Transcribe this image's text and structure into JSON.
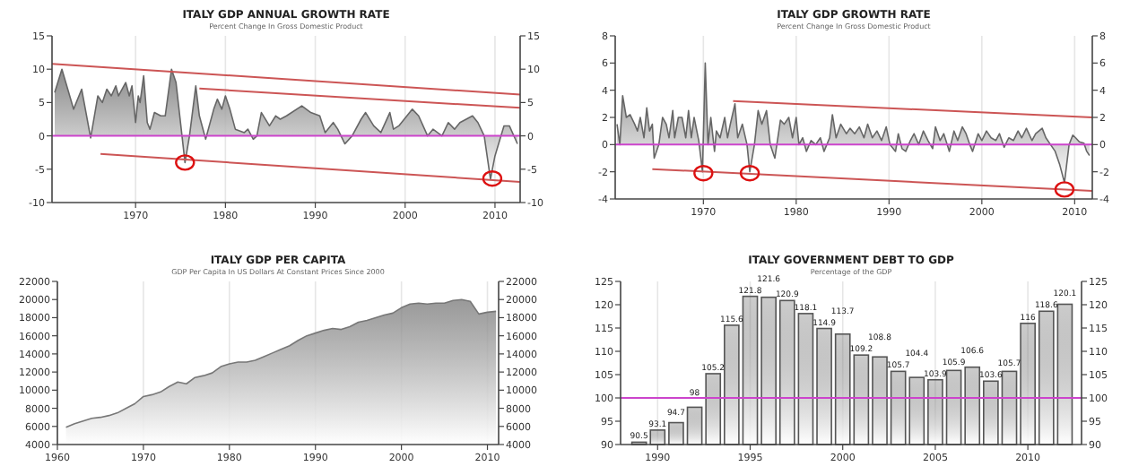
{
  "chart_data": [
    {
      "type": "area",
      "title": "ITALY GDP ANNUAL GROWTH RATE",
      "subtitle": "Percent Change In Gross Domestic Product",
      "xlim": [
        1960.7,
        2012.8
      ],
      "xticks": [
        1970,
        1980,
        1990,
        2000,
        2010
      ],
      "ylim": [
        -10,
        15
      ],
      "yticks": [
        -10,
        -5,
        0,
        5,
        10,
        15
      ],
      "y2lim": [
        -10,
        15
      ],
      "y2ticks": [
        -10,
        -5,
        0,
        5,
        10,
        15
      ],
      "grid": "x",
      "ref_lines": [
        {
          "axis": "y",
          "value": 0,
          "color": "#cc44cc"
        }
      ],
      "series": [
        {
          "type": "area",
          "color": "#666666",
          "x": [
            1961.0,
            1961.8,
            1963.1,
            1964.0,
            1965.0,
            1965.8,
            1966.3,
            1966.8,
            1967.3,
            1967.8,
            1968.1,
            1968.9,
            1969.3,
            1969.6,
            1970.0,
            1970.3,
            1970.5,
            1970.9,
            1971.3,
            1971.6,
            1972.1,
            1972.8,
            1973.3,
            1974.0,
            1974.5,
            1975.5,
            1976.0,
            1976.7,
            1977.1,
            1977.8,
            1978.7,
            1979.1,
            1979.6,
            1980.0,
            1980.5,
            1981.1,
            1982.1,
            1982.5,
            1983.1,
            1983.5,
            1984.0,
            1984.9,
            1985.6,
            1986.1,
            1986.8,
            1988.5,
            1989.5,
            1990.5,
            1991.1,
            1992.0,
            1992.5,
            1993.3,
            1994.1,
            1995.1,
            1995.6,
            1996.5,
            1997.3,
            1998.3,
            1998.7,
            1999.3,
            2000.8,
            2001.5,
            2002.5,
            2003.1,
            2004.1,
            2004.8,
            2005.5,
            2006.1,
            2007.5,
            2008.1,
            2008.8,
            2009.5,
            2010.0,
            2011.0,
            2011.6,
            2012.5
          ],
          "values": [
            6.5,
            10,
            4,
            7,
            -0.3,
            6,
            5,
            7,
            6,
            7.5,
            6,
            8,
            6,
            7.5,
            2,
            6,
            5,
            9,
            2,
            1,
            3.5,
            3,
            3,
            10,
            8,
            -4,
            0,
            7.5,
            3,
            -0.5,
            4,
            5.5,
            4,
            6,
            4,
            1,
            0.5,
            1,
            -0.5,
            0,
            3.5,
            1.5,
            3,
            2.5,
            3,
            4.5,
            3.5,
            3,
            0.5,
            2,
            1,
            -1.2,
            0,
            2.5,
            3.5,
            1.5,
            0.5,
            3.5,
            1,
            1.5,
            4,
            3,
            0,
            1,
            0,
            2,
            1,
            2,
            3,
            2,
            0,
            -6.5,
            -3,
            1.5,
            1.5,
            -1.2
          ]
        },
        {
          "type": "line",
          "color": "#cc5555",
          "x": [
            1960.7,
            2012.8
          ],
          "values": [
            10.8,
            6.2
          ]
        },
        {
          "type": "line",
          "color": "#cc5555",
          "x": [
            1977.1,
            2012.8
          ],
          "values": [
            7.1,
            4.2
          ]
        },
        {
          "type": "line",
          "color": "#cc5555",
          "x": [
            1966.1,
            2012.8
          ],
          "values": [
            -2.7,
            -6.9
          ]
        },
        {
          "type": "scatter",
          "marker": "circle",
          "color": "#dd1111",
          "x": [
            1975.5,
            2009.7
          ],
          "values": [
            -4,
            -6.4
          ]
        }
      ]
    },
    {
      "type": "area",
      "title": "ITALY GDP GROWTH RATE",
      "subtitle": "Percent Change In Gross Domestic Product",
      "xlim": [
        1960.5,
        2011.9
      ],
      "xticks": [
        1970,
        1980,
        1990,
        2000,
        2010
      ],
      "ylim": [
        -4,
        8
      ],
      "yticks": [
        -4,
        -2,
        0,
        2,
        4,
        6,
        8
      ],
      "y2lim": [
        -4,
        8
      ],
      "y2ticks": [
        -4,
        -2,
        0,
        2,
        4,
        6,
        8
      ],
      "grid": "x",
      "ref_lines": [
        {
          "axis": "y",
          "value": 0,
          "color": "#cc44cc"
        }
      ],
      "series": [
        {
          "type": "area",
          "color": "#666666",
          "x": [
            1960.7,
            1961.0,
            1961.3,
            1961.7,
            1962.1,
            1962.6,
            1962.9,
            1963.2,
            1963.6,
            1963.9,
            1964.2,
            1964.5,
            1964.7,
            1965.2,
            1965.6,
            1966.0,
            1966.3,
            1966.7,
            1966.9,
            1967.3,
            1967.7,
            1968.1,
            1968.4,
            1968.7,
            1969.0,
            1969.5,
            1969.9,
            1970.2,
            1970.5,
            1970.8,
            1971.2,
            1971.4,
            1971.8,
            1972.3,
            1972.6,
            1972.9,
            1973.4,
            1973.7,
            1974.2,
            1974.7,
            1975.0,
            1975.5,
            1975.9,
            1976.3,
            1976.8,
            1977.2,
            1977.7,
            1978.3,
            1978.7,
            1979.2,
            1979.6,
            1980.0,
            1980.3,
            1980.7,
            1981.1,
            1981.6,
            1982.1,
            1982.6,
            1983.0,
            1983.6,
            1983.9,
            1984.3,
            1984.8,
            1985.4,
            1985.8,
            1986.3,
            1986.8,
            1987.3,
            1987.7,
            1988.2,
            1988.7,
            1989.2,
            1989.7,
            1990.1,
            1990.7,
            1991.0,
            1991.4,
            1991.8,
            1992.3,
            1992.7,
            1993.2,
            1993.7,
            1994.2,
            1994.7,
            1995.0,
            1995.5,
            1995.9,
            1996.5,
            1997.0,
            1997.4,
            1997.9,
            1998.3,
            1998.7,
            1999.0,
            1999.6,
            2000.0,
            2000.5,
            2001.0,
            2001.5,
            2001.9,
            2002.4,
            2002.9,
            2003.4,
            2003.9,
            2004.3,
            2004.8,
            2005.4,
            2005.8,
            2006.5,
            2006.9,
            2007.4,
            2007.9,
            2008.4,
            2008.9,
            2009.4,
            2009.8,
            2010.1,
            2010.5,
            2011.0,
            2011.3,
            2011.6
          ],
          "values": [
            1.5,
            0,
            3.6,
            2,
            2.2,
            1.5,
            1,
            2,
            0.5,
            2.7,
            1,
            1.5,
            -1,
            0,
            2,
            1.5,
            0.5,
            2.5,
            0.5,
            2,
            2,
            0.5,
            2.5,
            0.5,
            2,
            0.3,
            -2,
            6,
            0,
            2,
            -0.5,
            1,
            0.5,
            2,
            0.5,
            1.5,
            3,
            0.5,
            1.5,
            0,
            -2,
            0,
            2.5,
            1.5,
            2.5,
            0,
            -1,
            1.8,
            1.5,
            2,
            0.5,
            2,
            0,
            0.5,
            -0.5,
            0.3,
            0,
            0.5,
            -0.5,
            0.5,
            2.2,
            0.5,
            1.5,
            0.8,
            1.2,
            0.8,
            1.3,
            0.5,
            1.5,
            0.5,
            1,
            0.3,
            1.3,
            0,
            -0.5,
            0.8,
            -0.3,
            -0.5,
            0.3,
            0.8,
            0,
            1,
            0.3,
            -0.3,
            1.3,
            0.3,
            0.8,
            -0.5,
            1,
            0.3,
            1.3,
            0.8,
            0,
            -0.5,
            0.8,
            0.3,
            1,
            0.5,
            0.3,
            0.8,
            -0.2,
            0.5,
            0.3,
            1,
            0.5,
            1.2,
            0.3,
            0.8,
            1.2,
            0.5,
            0,
            -0.5,
            -1.5,
            -2.8,
            0,
            0.7,
            0.5,
            0.2,
            0.1,
            -0.5,
            -0.8
          ]
        },
        {
          "type": "line",
          "color": "#cc5555",
          "x": [
            1973.2,
            2011.9
          ],
          "values": [
            3.2,
            2.0
          ]
        },
        {
          "type": "line",
          "color": "#cc5555",
          "x": [
            1964.5,
            2011.9
          ],
          "values": [
            -1.8,
            -3.4
          ]
        },
        {
          "type": "scatter",
          "marker": "circle",
          "color": "#dd1111",
          "x": [
            1970.0,
            1975.0,
            2008.9
          ],
          "values": [
            -2.1,
            -2.1,
            -3.3
          ]
        }
      ]
    },
    {
      "type": "area",
      "title": "ITALY GDP PER CAPITA",
      "subtitle": "GDP Per Capita In US Dollars At Constant Prices Since 2000",
      "xlim": [
        1960,
        2011.3
      ],
      "xticks": [
        1960,
        1970,
        1980,
        1990,
        2000,
        2010
      ],
      "ylim": [
        4000,
        22000
      ],
      "yticks": [
        4000,
        6000,
        8000,
        10000,
        12000,
        14000,
        16000,
        18000,
        20000,
        22000
      ],
      "y2lim": [
        4000,
        22000
      ],
      "y2ticks": [
        4000,
        6000,
        8000,
        10000,
        12000,
        14000,
        16000,
        18000,
        20000,
        22000
      ],
      "grid": "x",
      "series": [
        {
          "type": "area",
          "color": "#777777",
          "x": [
            1961,
            1962,
            1963,
            1964,
            1965,
            1966,
            1967,
            1968,
            1969,
            1970,
            1971,
            1972,
            1973,
            1974,
            1975,
            1976,
            1977,
            1978,
            1979,
            1980,
            1981,
            1982,
            1983,
            1984,
            1985,
            1986,
            1987,
            1988,
            1989,
            1990,
            1991,
            1992,
            1993,
            1994,
            1995,
            1996,
            1997,
            1998,
            1999,
            2000,
            2001,
            2002,
            2003,
            2004,
            2005,
            2006,
            2007,
            2008,
            2009,
            2010,
            2011
          ],
          "values": [
            5900,
            6300,
            6600,
            6900,
            7000,
            7200,
            7500,
            8000,
            8500,
            9300,
            9500,
            9800,
            10400,
            10900,
            10700,
            11400,
            11600,
            11900,
            12600,
            12900,
            13100,
            13100,
            13300,
            13700,
            14100,
            14500,
            14900,
            15500,
            16000,
            16300,
            16600,
            16800,
            16700,
            17000,
            17500,
            17700,
            18000,
            18300,
            18500,
            19100,
            19500,
            19600,
            19500,
            19600,
            19600,
            19900,
            20000,
            19800,
            18400,
            18600,
            18700
          ]
        }
      ]
    },
    {
      "type": "bar",
      "title": "ITALY GOVERNMENT DEBT TO GDP",
      "subtitle": "Percentage of the GDP",
      "xlim": [
        1988,
        2012.9
      ],
      "xticks": [
        1990,
        1995,
        2000,
        2005,
        2010
      ],
      "ylim": [
        90,
        125
      ],
      "yticks": [
        90,
        95,
        100,
        105,
        110,
        115,
        120,
        125
      ],
      "y2lim": [
        90,
        125
      ],
      "y2ticks": [
        90,
        95,
        100,
        105,
        110,
        115,
        120,
        125
      ],
      "grid": "x",
      "data_labels": true,
      "ref_lines": [
        {
          "axis": "y",
          "value": 100,
          "color": "#cc44cc"
        }
      ],
      "series": [
        {
          "type": "bar",
          "color": "#555555",
          "x": [
            1989,
            1990,
            1991,
            1992,
            1993,
            1994,
            1995,
            1996,
            1997,
            1998,
            1999,
            2000,
            2001,
            2002,
            2003,
            2004,
            2005,
            2006,
            2007,
            2008,
            2009,
            2010,
            2011,
            2012
          ],
          "values": [
            90.5,
            93.1,
            94.7,
            98,
            105.2,
            115.6,
            121.8,
            121.6,
            120.9,
            118.1,
            114.9,
            113.7,
            109.2,
            108.8,
            105.7,
            104.4,
            103.9,
            105.9,
            106.6,
            103.6,
            105.7,
            116,
            118.6,
            120.1
          ]
        }
      ]
    }
  ]
}
